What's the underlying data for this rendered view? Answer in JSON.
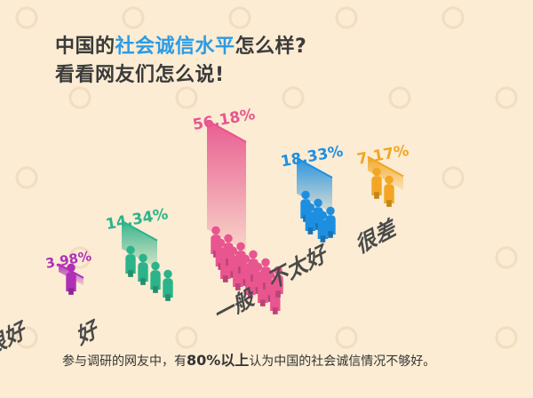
{
  "title": {
    "line1_before": "中国的",
    "line1_highlight": "社会诚信水平",
    "line1_after": "怎么样?",
    "line2": "看看网友们怎么说!"
  },
  "footnote": {
    "before": "参与调研的网友中，有",
    "highlight": "80%以上",
    "after": "认为中国的社会诚信情况不够好。"
  },
  "colors": {
    "background": "#fbecd3",
    "very_good": "#b02fb7",
    "good": "#2bb38a",
    "average": "#e8558f",
    "not_good": "#1e8fe0",
    "very_bad": "#f2a623",
    "category_label": "#4a4a4a"
  },
  "chart_data": {
    "type": "bar",
    "categories": [
      "很好",
      "好",
      "一般",
      "不太好",
      "很差"
    ],
    "values": [
      3.98,
      14.34,
      56.18,
      18.33,
      7.17
    ],
    "data_labels": [
      "3.98%",
      "14.34%",
      "56.18%",
      "18.33%",
      "7.17%"
    ],
    "unit": "%",
    "title": "中国的社会诚信水平怎么样?",
    "xlabel": "",
    "ylabel": "",
    "ylim": [
      0,
      60
    ],
    "grid": false,
    "legend": "none",
    "style": "isometric people pictogram"
  }
}
